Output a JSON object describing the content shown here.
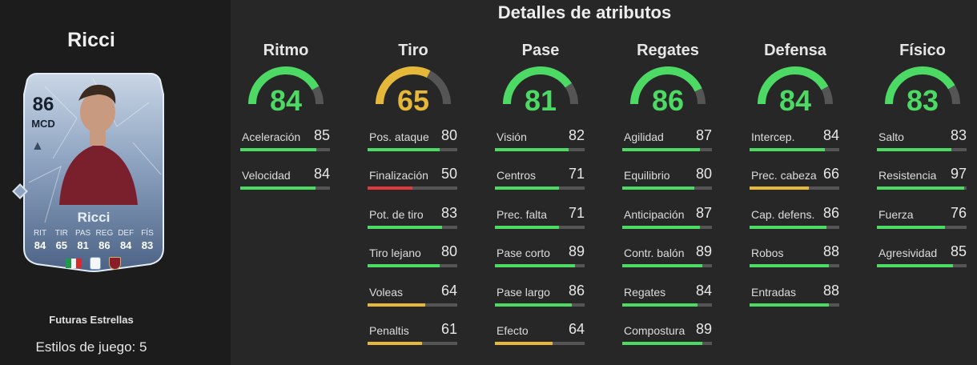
{
  "colors": {
    "high": "#4cd964",
    "mid": "#e5b83a",
    "low": "#e0393e",
    "track": "#555555"
  },
  "player": {
    "name": "Ricci",
    "rating": "86",
    "position": "MCD",
    "card_name": "Ricci",
    "card_stats": [
      {
        "label": "RIT",
        "value": "84"
      },
      {
        "label": "TIR",
        "value": "65"
      },
      {
        "label": "PAS",
        "value": "81"
      },
      {
        "label": "REG",
        "value": "86"
      },
      {
        "label": "DEF",
        "value": "84"
      },
      {
        "label": "FÍS",
        "value": "83"
      }
    ],
    "nation_icon": "flag-italy-icon",
    "league_icon": "serie-a-icon",
    "club_icon": "torino-crest-icon",
    "version": "Futuras Estrellas",
    "playstyles": "Estilos de juego: 5"
  },
  "title": "Detalles de atributos",
  "categories": [
    {
      "name": "Ritmo",
      "value": 84,
      "display": "84",
      "attrs": [
        {
          "name": "Aceleración",
          "value": 85,
          "display": "85"
        },
        {
          "name": "Velocidad",
          "value": 84,
          "display": "84"
        }
      ]
    },
    {
      "name": "Tiro",
      "value": 65,
      "display": "65",
      "attrs": [
        {
          "name": "Pos. ataque",
          "value": 80,
          "display": "80"
        },
        {
          "name": "Finalización",
          "value": 50,
          "display": "50"
        },
        {
          "name": "Pot. de tiro",
          "value": 83,
          "display": "83"
        },
        {
          "name": "Tiro lejano",
          "value": 80,
          "display": "80"
        },
        {
          "name": "Voleas",
          "value": 64,
          "display": "64"
        },
        {
          "name": "Penaltis",
          "value": 61,
          "display": "61"
        }
      ]
    },
    {
      "name": "Pase",
      "value": 81,
      "display": "81",
      "attrs": [
        {
          "name": "Visión",
          "value": 82,
          "display": "82"
        },
        {
          "name": "Centros",
          "value": 71,
          "display": "71"
        },
        {
          "name": "Prec. falta",
          "value": 71,
          "display": "71"
        },
        {
          "name": "Pase corto",
          "value": 89,
          "display": "89"
        },
        {
          "name": "Pase largo",
          "value": 86,
          "display": "86"
        },
        {
          "name": "Efecto",
          "value": 64,
          "display": "64"
        }
      ]
    },
    {
      "name": "Regates",
      "value": 86,
      "display": "86",
      "attrs": [
        {
          "name": "Agilidad",
          "value": 87,
          "display": "87"
        },
        {
          "name": "Equilibrio",
          "value": 80,
          "display": "80"
        },
        {
          "name": "Anticipación",
          "value": 87,
          "display": "87"
        },
        {
          "name": "Contr. balón",
          "value": 89,
          "display": "89"
        },
        {
          "name": "Regates",
          "value": 84,
          "display": "84"
        },
        {
          "name": "Compostura",
          "value": 89,
          "display": "89"
        }
      ]
    },
    {
      "name": "Defensa",
      "value": 84,
      "display": "84",
      "attrs": [
        {
          "name": "Intercep.",
          "value": 84,
          "display": "84"
        },
        {
          "name": "Prec. cabeza",
          "value": 66,
          "display": "66"
        },
        {
          "name": "Cap. defens.",
          "value": 86,
          "display": "86"
        },
        {
          "name": "Robos",
          "value": 88,
          "display": "88"
        },
        {
          "name": "Entradas",
          "value": 88,
          "display": "88"
        }
      ]
    },
    {
      "name": "Físico",
      "value": 83,
      "display": "83",
      "attrs": [
        {
          "name": "Salto",
          "value": 83,
          "display": "83"
        },
        {
          "name": "Resistencia",
          "value": 97,
          "display": "97"
        },
        {
          "name": "Fuerza",
          "value": 76,
          "display": "76"
        },
        {
          "name": "Agresividad",
          "value": 85,
          "display": "85"
        }
      ]
    }
  ]
}
